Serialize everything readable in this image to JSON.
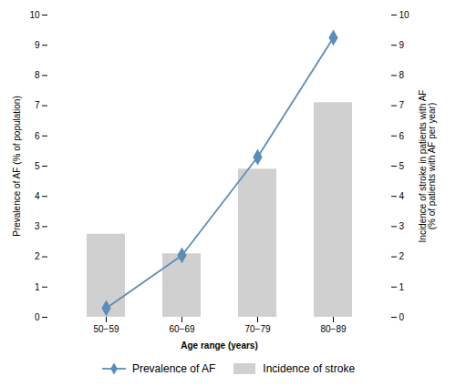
{
  "chart_data": {
    "type": "bar",
    "categories": [
      "50−59",
      "60−69",
      "70−79",
      "80−89"
    ],
    "xlabel": "Age range (years)",
    "ylabel": "Prevalence of AF (% of population)",
    "y2label": "Incidence of stroke in patients with AF\n(% of patients with AF per year)",
    "ylim": [
      0,
      10
    ],
    "yticks": [
      0,
      1,
      2,
      3,
      4,
      5,
      6,
      7,
      8,
      9,
      10
    ],
    "y2lim": [
      0,
      10
    ],
    "y2ticks": [
      0,
      1,
      2,
      3,
      4,
      5,
      6,
      7,
      8,
      9,
      10
    ],
    "grid": false,
    "legend": "bottom",
    "series": [
      {
        "name": "Prevalence of AF",
        "type": "line",
        "color": "#5b8db8",
        "marker": "diamond",
        "values": [
          0.3,
          2.05,
          5.3,
          9.25
        ]
      },
      {
        "name": "Incidence of stroke",
        "type": "bar",
        "color": "#d0d0d0",
        "axis": "y2",
        "values": [
          2.75,
          2.1,
          4.9,
          7.1
        ]
      }
    ]
  }
}
